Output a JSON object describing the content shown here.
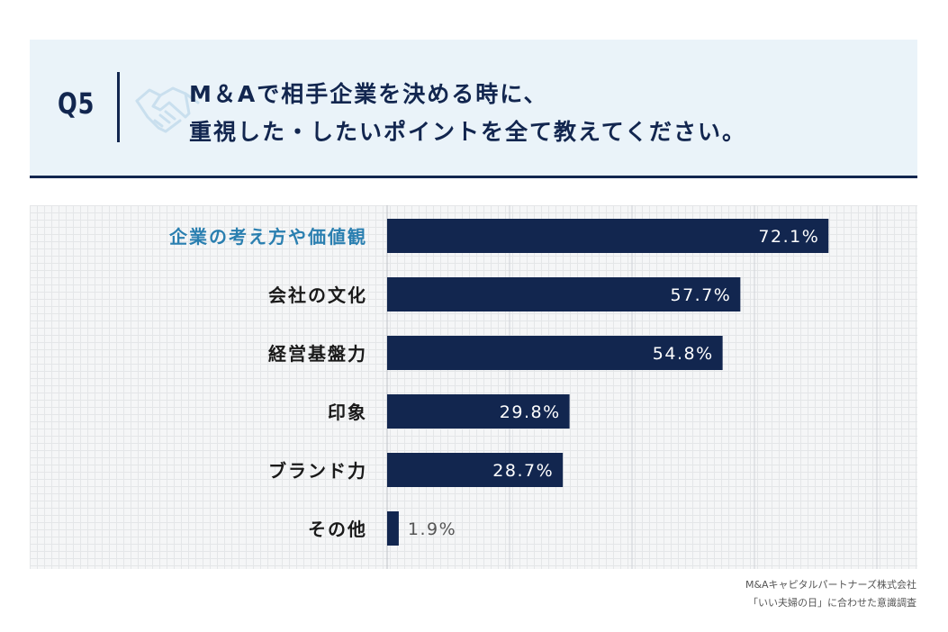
{
  "header": {
    "question_number": "Q5",
    "question_line1": "M＆Aで相手企業を決める時に、",
    "question_line2": "重視した・したいポイントを全て教えてください。",
    "icon": "handshake-icon"
  },
  "source": {
    "line1": "M&Aキャピタルパートナーズ株式会社",
    "line2": "「いい夫婦の日」に合わせた意識調査"
  },
  "colors": {
    "bar": "#12264f",
    "highlight_label": "#2a7fb0",
    "label": "#1a1a1a"
  },
  "chart_data": {
    "type": "bar",
    "orientation": "horizontal",
    "title": "M＆Aで相手企業を決める時に、重視した・したいポイントを全て教えてください。",
    "categories": [
      "企業の考え方や価値観",
      "会社の文化",
      "経営基盤力",
      "印象",
      "ブランド力",
      "その他"
    ],
    "values": [
      72.1,
      57.7,
      54.8,
      29.8,
      28.7,
      1.9
    ],
    "value_labels": [
      "72.1%",
      "57.7%",
      "54.8%",
      "29.8%",
      "28.7%",
      "1.9%"
    ],
    "highlight_index": 0,
    "xlim": [
      0,
      80
    ],
    "gridlines": [
      0,
      20,
      40,
      60,
      80
    ],
    "xlabel": "",
    "ylabel": ""
  }
}
